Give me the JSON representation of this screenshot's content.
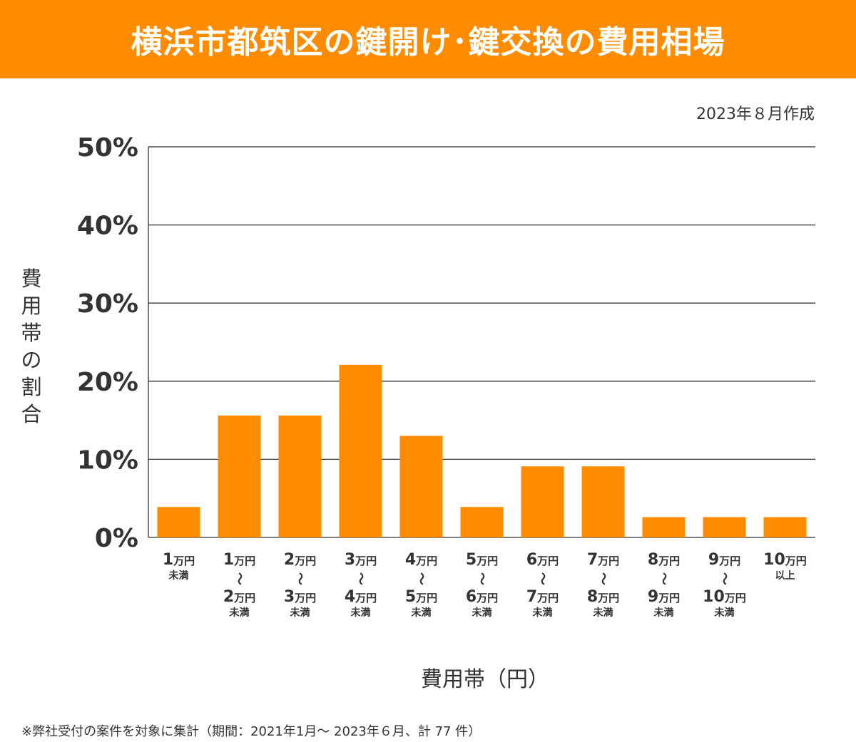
{
  "banner": {
    "title": "横浜市都筑区の鍵開け･鍵交換の費用相場"
  },
  "date_note": "2023年８月作成",
  "footnote": "※弊社受付の案件を対象に集計（期間：2021年1月～ 2023年６月、計 77 件）",
  "colors": {
    "banner": "#ff8c00",
    "bar": "#ff8c00",
    "grid": "#333333",
    "text": "#333333"
  },
  "chart_data": {
    "type": "bar",
    "title": "横浜市都筑区の鍵開け･鍵交換の費用相場",
    "xlabel": "費用帯（円）",
    "ylabel": "費用帯の割合",
    "ylim": [
      0,
      50
    ],
    "yticks": [
      0,
      10,
      20,
      30,
      40,
      50
    ],
    "ytick_labels": [
      "0%",
      "10%",
      "20%",
      "30%",
      "40%",
      "50%"
    ],
    "grid": true,
    "categories": [
      "1万円未満",
      "1万円〜2万円未満",
      "2万円〜3万円未満",
      "3万円〜4万円未満",
      "4万円〜5万円未満",
      "5万円〜6万円未満",
      "6万円〜7万円未満",
      "7万円〜8万円未満",
      "8万円〜9万円未満",
      "9万円〜10万円未満",
      "10万円以上"
    ],
    "category_parts": [
      {
        "from": "1",
        "to": null,
        "suffix": "未満"
      },
      {
        "from": "1",
        "to": "2",
        "suffix": "未満"
      },
      {
        "from": "2",
        "to": "3",
        "suffix": "未満"
      },
      {
        "from": "3",
        "to": "4",
        "suffix": "未満"
      },
      {
        "from": "4",
        "to": "5",
        "suffix": "未満"
      },
      {
        "from": "5",
        "to": "6",
        "suffix": "未満"
      },
      {
        "from": "6",
        "to": "7",
        "suffix": "未満"
      },
      {
        "from": "7",
        "to": "8",
        "suffix": "未満"
      },
      {
        "from": "8",
        "to": "9",
        "suffix": "未満"
      },
      {
        "from": "9",
        "to": "10",
        "suffix": "未満"
      },
      {
        "from": "10",
        "to": null,
        "suffix": "以上"
      }
    ],
    "unit": "万円",
    "values": [
      3.9,
      15.6,
      15.6,
      22.1,
      13.0,
      3.9,
      9.1,
      9.1,
      2.6,
      2.6,
      2.6
    ]
  }
}
